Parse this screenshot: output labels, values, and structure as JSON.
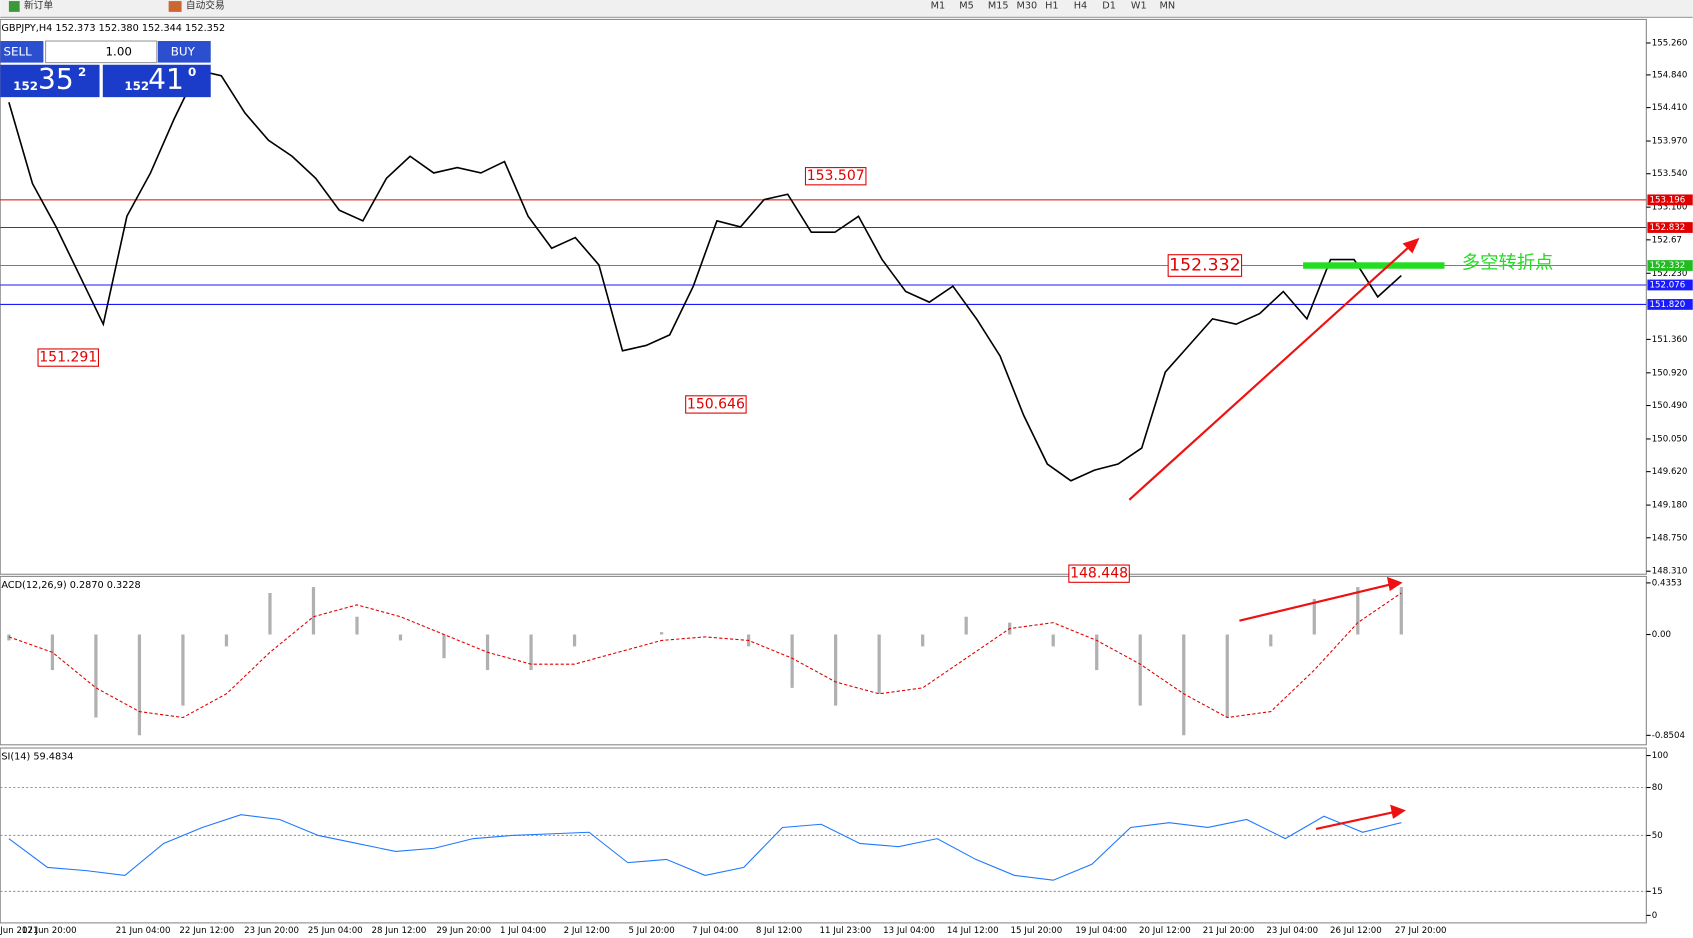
{
  "toolbar": {
    "new_order": "新订单",
    "auto_trading": "自动交易",
    "timeframes": [
      "M1",
      "M5",
      "M15",
      "M30",
      "H1",
      "H4",
      "D1",
      "W1",
      "MN"
    ]
  },
  "order_panel": {
    "sell": "SELL",
    "lots": "1.00",
    "buy": "BUY",
    "bid_big": "152",
    "bid_mid": "35",
    "bid_sup": "2",
    "ask_big": "152",
    "ask_mid": "41",
    "ask_sup": "0"
  },
  "time_axis": [
    "Jun 2021",
    "17 Jun 20:00",
    "21 Jun 04:00",
    "22 Jun 12:00",
    "23 Jun 20:00",
    "25 Jun 04:00",
    "28 Jun 12:00",
    "29 Jun 20:00",
    "1 Jul 04:00",
    "2 Jul 12:00",
    "5 Jul 20:00",
    "7 Jul 04:00",
    "8 Jul 12:00",
    "11 Jul 23:00",
    "13 Jul 04:00",
    "14 Jul 12:00",
    "15 Jul 20:00",
    "19 Jul 04:00",
    "20 Jul 12:00",
    "21 Jul 20:00",
    "23 Jul 04:00",
    "26 Jul 12:00",
    "27 Jul 20:00"
  ],
  "chart_data": [
    {
      "type": "line",
      "title": "GBPJPY,H4 152.373 152.380 152.344 152.352",
      "color": "#000000",
      "values": [
        154.48,
        153.41,
        152.84,
        152.2,
        151.56,
        152.98,
        153.55,
        154.26,
        154.9,
        154.83,
        154.34,
        153.98,
        153.77,
        153.48,
        153.06,
        152.92,
        153.48,
        153.77,
        153.55,
        153.62,
        153.55,
        153.7,
        152.98,
        152.56,
        152.7,
        152.34,
        151.21,
        151.28,
        151.42,
        152.06,
        152.92,
        152.84,
        153.2,
        153.27,
        152.77,
        152.77,
        152.98,
        152.41,
        151.99,
        151.85,
        152.06,
        151.63,
        151.14,
        150.36,
        149.72,
        149.5,
        149.64,
        149.72,
        149.93,
        150.93,
        151.28,
        151.63,
        151.56,
        151.7,
        151.99,
        151.63,
        152.41,
        152.41,
        151.92,
        152.2
      ],
      "ylim": [
        148.27,
        155.57
      ],
      "yticks": [
        {
          "value": 155.26,
          "label": "155.260"
        },
        {
          "value": 154.84,
          "label": "154.840"
        },
        {
          "value": 154.41,
          "label": "154.410"
        },
        {
          "value": 153.97,
          "label": "153.970"
        },
        {
          "value": 153.54,
          "label": "153.540"
        },
        {
          "value": 153.1,
          "label": "153.100"
        },
        152.67,
        {
          "value": 152.23,
          "label": "152.230"
        },
        {
          "value": 151.36,
          "label": "151.360"
        },
        {
          "value": 150.92,
          "label": "150.920"
        },
        {
          "value": 150.49,
          "label": "150.490"
        },
        {
          "value": 150.05,
          "label": "150.050"
        },
        {
          "value": 149.62,
          "label": "149.620"
        },
        {
          "value": 149.18,
          "label": "149.180"
        },
        {
          "value": 148.75,
          "label": "148.750"
        },
        {
          "value": 148.31,
          "label": "148.310"
        }
      ],
      "levels": [
        {
          "value": 153.196,
          "color": "#e00000"
        },
        {
          "value": 152.832,
          "color": "#e00000"
        },
        {
          "value": 152.332,
          "color": "#22bb22"
        },
        {
          "value": 152.076,
          "color": "#1a1aff"
        },
        {
          "value": {
            "value": 151.82,
            "label": "151.820"
          },
          "color": "#1a1aff"
        }
      ],
      "annotations": [
        151.291,
        150.646,
        153.507,
        148.448,
        152.332
      ],
      "note": "多空转折点"
    },
    {
      "type": "bar",
      "title": "ACD(12,26,9) 0.2870 0.3228",
      "color": "#b0b0b0",
      "values": [
        -0.05,
        -0.3,
        -0.7,
        -0.85,
        -0.6,
        -0.1,
        0.35,
        0.4,
        0.15,
        -0.05,
        -0.2,
        -0.3,
        -0.3,
        -0.1,
        0,
        0.02,
        0,
        -0.1,
        -0.45,
        -0.6,
        -0.5,
        -0.1,
        0.15,
        0.1,
        -0.1,
        -0.3,
        -0.6,
        -0.85,
        -0.7,
        -0.1,
        0.3,
        0.4,
        0.4
      ],
      "signal": {
        "color": "#e00000",
        "values": [
          -0.02,
          -0.15,
          -0.45,
          -0.65,
          -0.7,
          -0.5,
          -0.15,
          0.15,
          0.25,
          0.15,
          0,
          -0.15,
          -0.25,
          -0.25,
          -0.15,
          -0.05,
          -0.02,
          -0.05,
          -0.2,
          -0.4,
          -0.5,
          -0.45,
          -0.2,
          0.05,
          0.1,
          -0.05,
          -0.25,
          -0.5,
          -0.7,
          -0.65,
          -0.3,
          0.1,
          0.35
        ]
      },
      "ylim": [
        -0.93,
        0.49
      ],
      "yticks": [
        0.4353,
        {
          "value": 0,
          "label": "0.00"
        },
        -0.8504
      ]
    },
    {
      "type": "line",
      "title": "SI(14) 59.4834",
      "color": "#1e78ff",
      "values": [
        48,
        30,
        28,
        25,
        45,
        55,
        63,
        60,
        50,
        45,
        40,
        42,
        48,
        50,
        51,
        52,
        33,
        35,
        25,
        30,
        55,
        57,
        45,
        43,
        48,
        35,
        25,
        22,
        32,
        55,
        58,
        55,
        60,
        48,
        62,
        52,
        58
      ],
      "ylim": [
        -4.7,
        104.7
      ],
      "yticks": [
        100,
        80,
        50,
        15,
        0
      ],
      "levels": [
        80,
        50,
        15
      ]
    }
  ]
}
